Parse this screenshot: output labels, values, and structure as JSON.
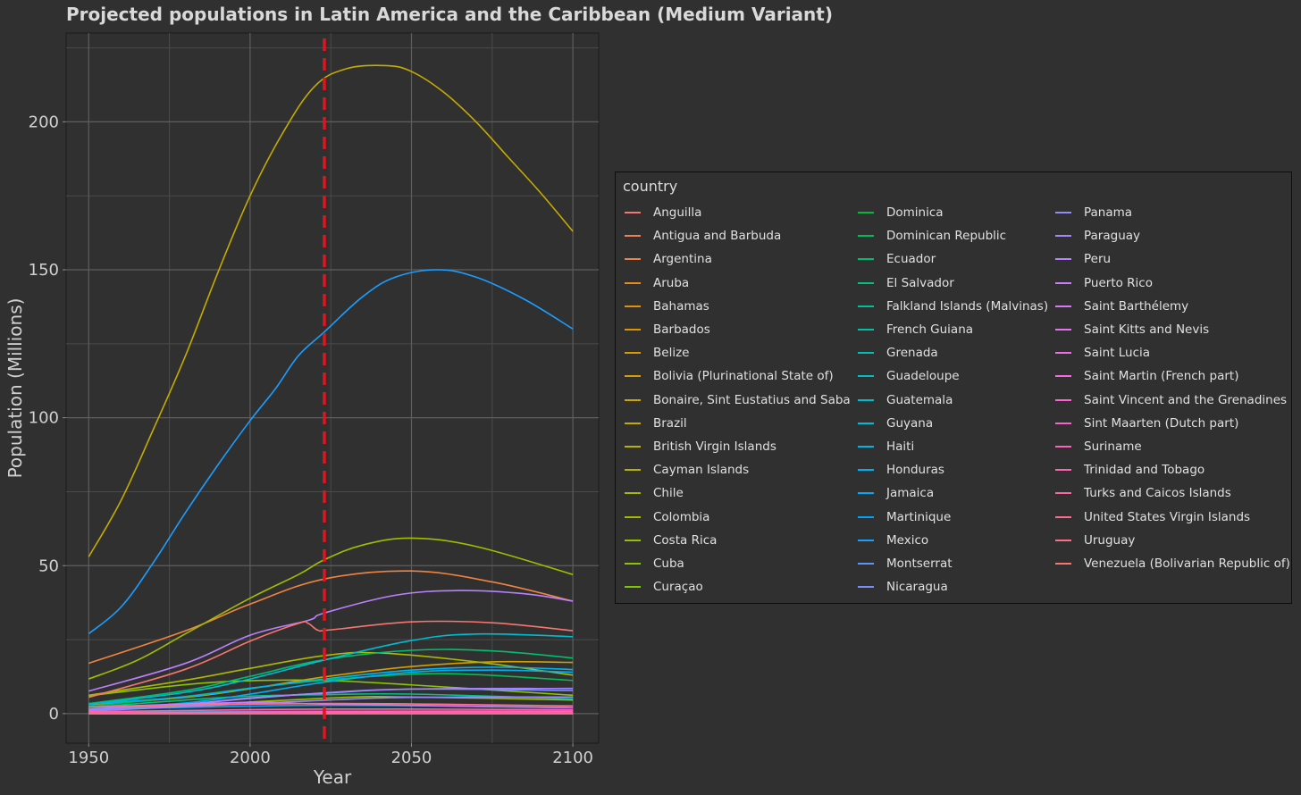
{
  "chart_data": {
    "type": "line",
    "title": "Projected populations in Latin America and the Caribbean (Medium Variant)",
    "xlabel": "Year",
    "ylabel": "Population (Millions)",
    "xlim": [
      1943,
      2108
    ],
    "ylim": [
      -10,
      230
    ],
    "xticks": [
      1950,
      2000,
      2050,
      2100
    ],
    "yticks": [
      0,
      50,
      100,
      150,
      200
    ],
    "x_tick_labels": [
      "1950",
      "2000",
      "2050",
      "2100"
    ],
    "y_tick_labels": [
      "0",
      "50",
      "100",
      "150",
      "200"
    ],
    "grid": true,
    "vline": {
      "x": 2023,
      "color": "#e0141e",
      "style": "dashed"
    },
    "legend": {
      "title": "country",
      "placement": "right",
      "columns": 3
    },
    "series": [
      {
        "name": "Anguilla",
        "color": "#F8766D",
        "x": [
          1950,
          2023,
          2100
        ],
        "y": [
          0.006,
          0.016,
          0.015
        ]
      },
      {
        "name": "Antigua and Barbuda",
        "color": "#F47D59",
        "x": [
          1950,
          2023,
          2100
        ],
        "y": [
          0.046,
          0.094,
          0.09
        ]
      },
      {
        "name": "Argentina",
        "color": "#EF8441",
        "x": [
          1950,
          1980,
          2000,
          2023,
          2050,
          2075,
          2100
        ],
        "y": [
          17.0,
          28.0,
          37.0,
          45.5,
          48.2,
          44.5,
          38.0
        ]
      },
      {
        "name": "Aruba",
        "color": "#E98A1F",
        "x": [
          1950,
          2023,
          2100
        ],
        "y": [
          0.05,
          0.11,
          0.09
        ]
      },
      {
        "name": "Bahamas",
        "color": "#E4900B",
        "x": [
          1950,
          2023,
          2100
        ],
        "y": [
          0.07,
          0.41,
          0.38
        ]
      },
      {
        "name": "Barbados",
        "color": "#DE9500",
        "x": [
          1950,
          2023,
          2100
        ],
        "y": [
          0.21,
          0.28,
          0.21
        ]
      },
      {
        "name": "Belize",
        "color": "#D89B00",
        "x": [
          1950,
          2023,
          2100
        ],
        "y": [
          0.07,
          0.41,
          0.55
        ]
      },
      {
        "name": "Bolivia (Plurinational State of)",
        "color": "#D2A100",
        "x": [
          1950,
          1980,
          2000,
          2023,
          2050,
          2075,
          2100
        ],
        "y": [
          3.0,
          5.5,
          8.4,
          12.4,
          15.9,
          17.5,
          17.3
        ]
      },
      {
        "name": "Bonaire, Sint Eustatius and Saba",
        "color": "#CBA600",
        "x": [
          1950,
          2023,
          2100
        ],
        "y": [
          0.01,
          0.03,
          0.03
        ]
      },
      {
        "name": "Brazil",
        "color": "#C4AB00",
        "x": [
          1950,
          1960,
          1970,
          1980,
          1990,
          2000,
          2010,
          2020,
          2030,
          2042,
          2050,
          2060,
          2070,
          2080,
          2090,
          2100
        ],
        "y": [
          53.0,
          72.0,
          96.0,
          121.0,
          149.0,
          175.0,
          196.0,
          212.0,
          218.0,
          219.0,
          217.0,
          210.0,
          200.0,
          188.0,
          176.0,
          163.0
        ]
      },
      {
        "name": "British Virgin Islands",
        "color": "#BCB000",
        "x": [
          1950,
          2023,
          2100
        ],
        "y": [
          0.007,
          0.031,
          0.03
        ]
      },
      {
        "name": "Cayman Islands",
        "color": "#B4B500",
        "x": [
          1950,
          2023,
          2100
        ],
        "y": [
          0.007,
          0.07,
          0.08
        ]
      },
      {
        "name": "Chile",
        "color": "#ABB900",
        "x": [
          1950,
          1980,
          2000,
          2023,
          2040,
          2070,
          2100
        ],
        "y": [
          6.2,
          11.3,
          15.3,
          19.6,
          20.5,
          17.5,
          13.0
        ]
      },
      {
        "name": "Colombia",
        "color": "#A2BD00",
        "x": [
          1950,
          1965,
          1980,
          2000,
          2015,
          2023,
          2035,
          2050,
          2070,
          2100
        ],
        "y": [
          11.7,
          18.0,
          27.0,
          39.0,
          47.0,
          52.0,
          57.0,
          59.3,
          56.5,
          47.0
        ]
      },
      {
        "name": "Costa Rica",
        "color": "#97C100",
        "x": [
          1950,
          2023,
          2050,
          2100
        ],
        "y": [
          0.97,
          5.2,
          5.6,
          4.6
        ]
      },
      {
        "name": "Cuba",
        "color": "#8BC500",
        "x": [
          1950,
          1980,
          2000,
          2023,
          2050,
          2100
        ],
        "y": [
          6.0,
          9.8,
          11.1,
          11.2,
          9.7,
          6.2
        ]
      },
      {
        "name": "Curaçao",
        "color": "#7CC800",
        "x": [
          1950,
          2023,
          2100
        ],
        "y": [
          0.1,
          0.19,
          0.17
        ]
      },
      {
        "name": "Dominica",
        "color": "#00BA38",
        "x": [
          1950,
          2023,
          2100
        ],
        "y": [
          0.05,
          0.07,
          0.06
        ]
      },
      {
        "name": "Dominican Republic",
        "color": "#00BD55",
        "x": [
          1950,
          1980,
          2000,
          2023,
          2050,
          2070,
          2100
        ],
        "y": [
          2.4,
          5.8,
          8.6,
          11.3,
          13.3,
          13.2,
          11.2
        ]
      },
      {
        "name": "Ecuador",
        "color": "#00BF6C",
        "x": [
          1950,
          1980,
          2000,
          2023,
          2050,
          2075,
          2100
        ],
        "y": [
          3.4,
          7.8,
          12.6,
          18.2,
          21.4,
          21.2,
          18.8
        ]
      },
      {
        "name": "El Salvador",
        "color": "#00C180",
        "x": [
          1950,
          1980,
          2000,
          2023,
          2050,
          2100
        ],
        "y": [
          2.1,
          4.6,
          5.9,
          6.4,
          6.6,
          5.0
        ]
      },
      {
        "name": "Falkland Islands (Malvinas)",
        "color": "#00C193",
        "x": [
          1950,
          2023,
          2100
        ],
        "y": [
          0.002,
          0.004,
          0.004
        ]
      },
      {
        "name": "French Guiana",
        "color": "#00C1A4",
        "x": [
          1950,
          2023,
          2100
        ],
        "y": [
          0.03,
          0.31,
          0.53
        ]
      },
      {
        "name": "Grenada",
        "color": "#00C0B4",
        "x": [
          1950,
          2023,
          2100
        ],
        "y": [
          0.08,
          0.13,
          0.11
        ]
      },
      {
        "name": "Guadeloupe",
        "color": "#00BFC3",
        "x": [
          1950,
          2023,
          2100
        ],
        "y": [
          0.21,
          0.39,
          0.28
        ]
      },
      {
        "name": "Guatemala",
        "color": "#00BCD1",
        "x": [
          1950,
          1980,
          2000,
          2023,
          2050,
          2070,
          2100
        ],
        "y": [
          3.1,
          7.2,
          11.7,
          18.1,
          24.7,
          26.9,
          26.0
        ]
      },
      {
        "name": "Guyana",
        "color": "#00B9DE",
        "x": [
          1950,
          2023,
          2100
        ],
        "y": [
          0.42,
          0.81,
          0.9
        ]
      },
      {
        "name": "Haiti",
        "color": "#00B4E9",
        "x": [
          1950,
          1980,
          2000,
          2023,
          2050,
          2075,
          2100
        ],
        "y": [
          3.2,
          5.7,
          8.5,
          11.7,
          14.7,
          15.7,
          14.9
        ]
      },
      {
        "name": "Honduras",
        "color": "#00AFF3",
        "x": [
          1950,
          1980,
          2000,
          2023,
          2050,
          2075,
          2100
        ],
        "y": [
          1.5,
          3.6,
          6.6,
          10.6,
          14.0,
          14.7,
          14.0
        ]
      },
      {
        "name": "Jamaica",
        "color": "#00A9FB",
        "x": [
          1950,
          2023,
          2100
        ],
        "y": [
          1.4,
          2.8,
          2.0
        ]
      },
      {
        "name": "Martinique",
        "color": "#00A3FF",
        "x": [
          1950,
          2023,
          2100
        ],
        "y": [
          0.22,
          0.37,
          0.25
        ]
      },
      {
        "name": "Mexico",
        "color": "#1C9DFF",
        "x": [
          1950,
          1960,
          1970,
          1980,
          1990,
          2000,
          2008,
          2015,
          2023,
          2035,
          2045,
          2058,
          2070,
          2085,
          2100
        ],
        "y": [
          27.0,
          36.0,
          51.0,
          68.0,
          84.0,
          99.0,
          110.0,
          121.0,
          129.0,
          141.0,
          147.5,
          150.0,
          147.5,
          140.0,
          130.0
        ]
      },
      {
        "name": "Montserrat",
        "color": "#5A96FF",
        "x": [
          1950,
          2023,
          2100
        ],
        "y": [
          0.013,
          0.004,
          0.003
        ]
      },
      {
        "name": "Nicaragua",
        "color": "#7A8FFF",
        "x": [
          1950,
          1980,
          2000,
          2023,
          2050,
          2100
        ],
        "y": [
          1.3,
          3.2,
          5.1,
          7.0,
          8.3,
          7.8
        ]
      },
      {
        "name": "Panama",
        "color": "#938AFF",
        "x": [
          1950,
          2023,
          2050,
          2100
        ],
        "y": [
          0.86,
          4.5,
          5.5,
          5.6
        ]
      },
      {
        "name": "Paraguay",
        "color": "#A885FF",
        "x": [
          1950,
          1980,
          2000,
          2023,
          2050,
          2100
        ],
        "y": [
          1.5,
          3.2,
          5.3,
          6.9,
          8.3,
          8.5
        ]
      },
      {
        "name": "Peru",
        "color": "#BA81FF",
        "x": [
          1950,
          1980,
          2000,
          2018,
          2023,
          2045,
          2065,
          2085,
          2100
        ],
        "y": [
          7.6,
          17.0,
          26.5,
          31.5,
          34.0,
          40.0,
          41.6,
          40.5,
          38.0
        ]
      },
      {
        "name": "Puerto Rico",
        "color": "#CA7CFD",
        "x": [
          1950,
          2000,
          2023,
          2100
        ],
        "y": [
          2.2,
          3.8,
          3.2,
          2.0
        ]
      },
      {
        "name": "Saint Barthélemy",
        "color": "#D977F8",
        "x": [
          1950,
          2023,
          2100
        ],
        "y": [
          0.002,
          0.011,
          0.01
        ]
      },
      {
        "name": "Saint Kitts and Nevis",
        "color": "#E671F2",
        "x": [
          1950,
          2023,
          2100
        ],
        "y": [
          0.05,
          0.047,
          0.04
        ]
      },
      {
        "name": "Saint Lucia",
        "color": "#F16CEA",
        "x": [
          1950,
          2023,
          2100
        ],
        "y": [
          0.08,
          0.18,
          0.14
        ]
      },
      {
        "name": "Saint Martin (French part)",
        "color": "#F967E1",
        "x": [
          1950,
          2023,
          2100
        ],
        "y": [
          0.003,
          0.032,
          0.03
        ]
      },
      {
        "name": "Saint Vincent and the Grenadines",
        "color": "#FF63D7",
        "x": [
          1950,
          2023,
          2100
        ],
        "y": [
          0.07,
          0.1,
          0.08
        ]
      },
      {
        "name": "Sint Maarten (Dutch part)",
        "color": "#FF61CB",
        "x": [
          1950,
          2023,
          2100
        ],
        "y": [
          0.003,
          0.044,
          0.04
        ]
      },
      {
        "name": "Suriname",
        "color": "#FF61BE",
        "x": [
          1950,
          2023,
          2100
        ],
        "y": [
          0.21,
          0.62,
          0.72
        ]
      },
      {
        "name": "Trinidad and Tobago",
        "color": "#FF63B1",
        "x": [
          1950,
          2023,
          2100
        ],
        "y": [
          0.64,
          1.53,
          1.3
        ]
      },
      {
        "name": "Turks and Caicos Islands",
        "color": "#FF66A3",
        "x": [
          1950,
          2023,
          2100
        ],
        "y": [
          0.006,
          0.046,
          0.05
        ]
      },
      {
        "name": "United States Virgin Islands",
        "color": "#FF6A95",
        "x": [
          1950,
          2023,
          2100
        ],
        "y": [
          0.027,
          0.1,
          0.07
        ]
      },
      {
        "name": "Uruguay",
        "color": "#FC6F87",
        "x": [
          1950,
          2023,
          2100
        ],
        "y": [
          2.2,
          3.4,
          2.6
        ]
      },
      {
        "name": "Venezuela (Bolivarian Republic of)",
        "color": "#F8766D",
        "x": [
          1950,
          1980,
          2000,
          2015,
          2018,
          2021,
          2025,
          2050,
          2075,
          2100
        ],
        "y": [
          5.5,
          15.0,
          24.5,
          30.5,
          30.5,
          28.2,
          28.3,
          31.0,
          30.7,
          28.0
        ]
      }
    ]
  }
}
